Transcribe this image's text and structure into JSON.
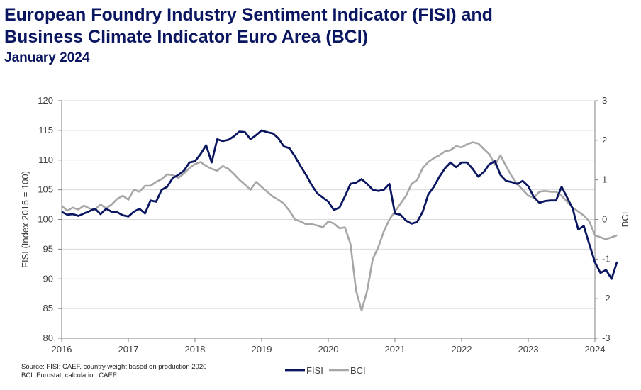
{
  "title_line1": "European Foundry Industry Sentiment Indicator (FISI) and",
  "title_line2": "Business Climate Indicator Euro Area (BCI)",
  "subtitle": "January 2024",
  "source_line1": "Source: FISI: CAEF, country weight based on production 2020",
  "source_line2": "BCI: Eurostat, calculation CAEF",
  "chart_data": {
    "type": "line",
    "title": "European Foundry Industry Sentiment Indicator (FISI) and Business Climate Indicator Euro Area (BCI)",
    "subtitle": "January 2024",
    "ylabel": "FISI (Index 2015 = 100)",
    "y2label": "BCI",
    "ylim": [
      80,
      120
    ],
    "y2lim": [
      -3,
      3
    ],
    "yticks": [
      80,
      85,
      90,
      95,
      100,
      105,
      110,
      115,
      120
    ],
    "y2ticks": [
      -3,
      -2,
      -1,
      0,
      1,
      2,
      3
    ],
    "xlim": [
      2016,
      2024
    ],
    "xticks": [
      2016,
      2017,
      2018,
      2019,
      2020,
      2021,
      2022,
      2023,
      2024
    ],
    "grid": true,
    "legend": "bottom-center",
    "colors": {
      "FISI": "#0b1660",
      "BCI": "#a6a6a6"
    },
    "series": [
      {
        "name": "FISI",
        "axis": "left",
        "start": "2016-01",
        "values": [
          101.3,
          100.8,
          100.9,
          100.6,
          101.0,
          101.4,
          101.8,
          100.9,
          101.8,
          101.3,
          101.2,
          100.7,
          100.5,
          101.3,
          101.8,
          101.0,
          103.2,
          103.0,
          105.0,
          105.5,
          107.0,
          107.5,
          108.2,
          109.6,
          109.8,
          111.0,
          112.5,
          109.6,
          113.5,
          113.2,
          113.4,
          114.0,
          114.8,
          114.7,
          113.5,
          114.2,
          115.0,
          114.7,
          114.5,
          113.7,
          112.3,
          112.0,
          110.6,
          109.0,
          107.5,
          105.8,
          104.4,
          103.7,
          103.0,
          101.6,
          102.0,
          103.9,
          106.0,
          106.2,
          106.8,
          106.0,
          105.0,
          104.8,
          105.0,
          106.0,
          101.0,
          100.8,
          99.8,
          99.3,
          99.6,
          101.3,
          104.2,
          105.5,
          107.2,
          108.6,
          109.6,
          108.8,
          109.6,
          109.6,
          108.5,
          107.2,
          108.0,
          109.3,
          109.8,
          107.5,
          106.5,
          106.3,
          106.0,
          106.5,
          105.6,
          103.8,
          102.8,
          103.1,
          103.2,
          103.2,
          105.5,
          103.7,
          101.8,
          98.3,
          98.9,
          95.8,
          92.8,
          91.0,
          91.5,
          90.0,
          92.9
        ]
      },
      {
        "name": "BCI",
        "axis": "right",
        "start": "2016-01",
        "values": [
          0.35,
          0.22,
          0.3,
          0.25,
          0.35,
          0.28,
          0.25,
          0.38,
          0.28,
          0.38,
          0.52,
          0.6,
          0.5,
          0.75,
          0.7,
          0.85,
          0.85,
          0.95,
          1.02,
          1.14,
          1.12,
          1.05,
          1.16,
          1.3,
          1.4,
          1.45,
          1.35,
          1.28,
          1.23,
          1.35,
          1.28,
          1.15,
          1.0,
          0.88,
          0.75,
          0.95,
          0.82,
          0.7,
          0.58,
          0.5,
          0.4,
          0.22,
          0.0,
          -0.05,
          -0.12,
          -0.12,
          -0.15,
          -0.2,
          -0.05,
          -0.1,
          -0.22,
          -0.2,
          -0.62,
          -1.8,
          -2.3,
          -1.8,
          -1.0,
          -0.7,
          -0.3,
          0.0,
          0.2,
          0.4,
          0.6,
          0.9,
          1.0,
          1.3,
          1.45,
          1.55,
          1.62,
          1.72,
          1.75,
          1.85,
          1.82,
          1.9,
          1.95,
          1.92,
          1.78,
          1.65,
          1.38,
          1.62,
          1.35,
          1.1,
          0.9,
          0.75,
          0.6,
          0.55,
          0.7,
          0.72,
          0.7,
          0.7,
          0.6,
          0.45,
          0.3,
          0.2,
          0.1,
          -0.05,
          -0.4,
          -0.45,
          -0.5,
          -0.45,
          -0.4
        ]
      }
    ]
  }
}
